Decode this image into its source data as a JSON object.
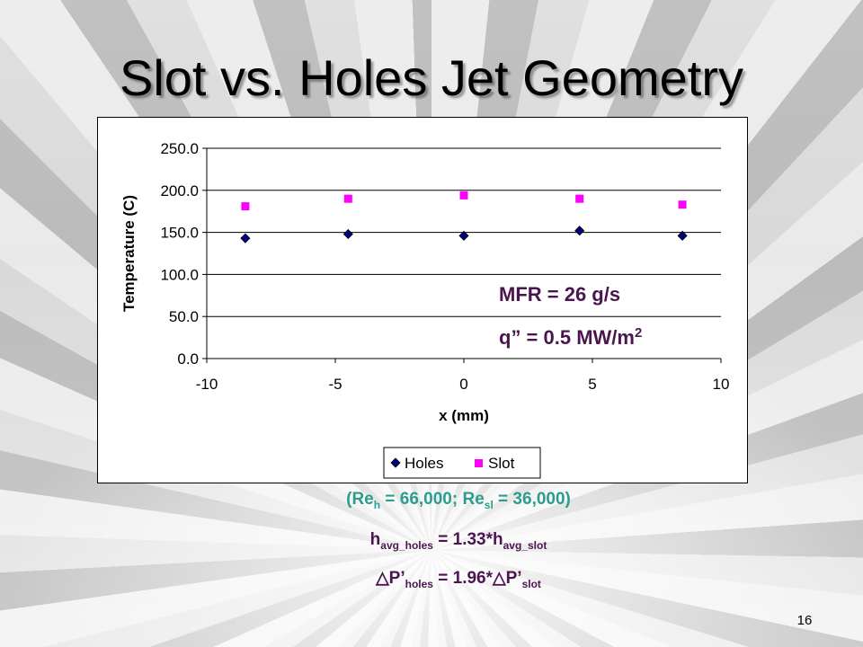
{
  "slide": {
    "title": "Slot vs. Holes Jet Geometry",
    "page_number": "16"
  },
  "chart_data": {
    "type": "scatter",
    "xlabel": "x (mm)",
    "ylabel": "Temperature (C)",
    "xlim": [
      -10,
      10
    ],
    "ylim": [
      0,
      250
    ],
    "x_ticks": [
      "-10",
      "-5",
      "0",
      "5",
      "10"
    ],
    "y_ticks": [
      "0.0",
      "50.0",
      "100.0",
      "150.0",
      "200.0",
      "250.0"
    ],
    "grid": "horizontal",
    "legend_position": "bottom",
    "series": [
      {
        "name": "Holes",
        "marker": "diamond",
        "color": "#000080",
        "x": [
          -8.5,
          -4.5,
          0,
          4.5,
          8.5
        ],
        "y": [
          143,
          148,
          146,
          152,
          146
        ]
      },
      {
        "name": "Slot",
        "marker": "square",
        "color": "#ff00ff",
        "x": [
          -8.5,
          -4.5,
          0,
          4.5,
          8.5
        ],
        "y": [
          181,
          190,
          194,
          190,
          183
        ]
      }
    ],
    "annotations": {
      "mfr": "MFR = 26 g/s",
      "q_prefix": "q” = 0.5 MW/m",
      "q_exp": "2"
    }
  },
  "captions": {
    "reynolds": {
      "open": "(Re",
      "h_sub": "h",
      "mid": " = 66,000; Re",
      "sl_sub": "sl",
      "close": " = 36,000)"
    },
    "htc": {
      "lhs": "h",
      "lhs_sub": "avg_holes",
      "mid": " = 1.33*h",
      "rhs_sub": "avg_slot"
    },
    "pressure": {
      "lhs": "△P’",
      "lhs_sub": "holes",
      "mid": " = 1.96*△P’",
      "rhs_sub": "slot"
    }
  }
}
